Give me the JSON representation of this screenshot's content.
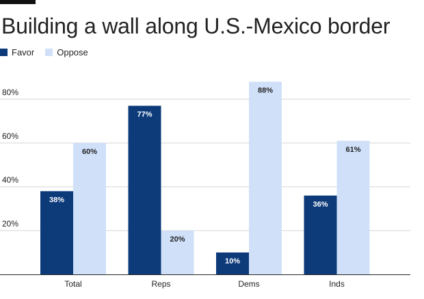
{
  "chart_data": {
    "type": "bar",
    "title": "Building a wall along U.S.-Mexico border",
    "categories": [
      "Total",
      "Reps",
      "Dems",
      "Inds"
    ],
    "series": [
      {
        "name": "Favor",
        "values": [
          38,
          77,
          10,
          36
        ],
        "color": "#0d3b7a",
        "label_color": "#ffffff"
      },
      {
        "name": "Oppose",
        "values": [
          60,
          20,
          88,
          61
        ],
        "color": "#cfe0f8",
        "label_color": "#222222"
      }
    ],
    "value_suffix": "%",
    "yticks": [
      20,
      40,
      60,
      80
    ],
    "ytick_labels": [
      "20%",
      "40%",
      "60%",
      "80%"
    ],
    "ylim": [
      0,
      100
    ],
    "xlabel": "",
    "ylabel": "",
    "grid": true,
    "legend_position": "top-left"
  }
}
